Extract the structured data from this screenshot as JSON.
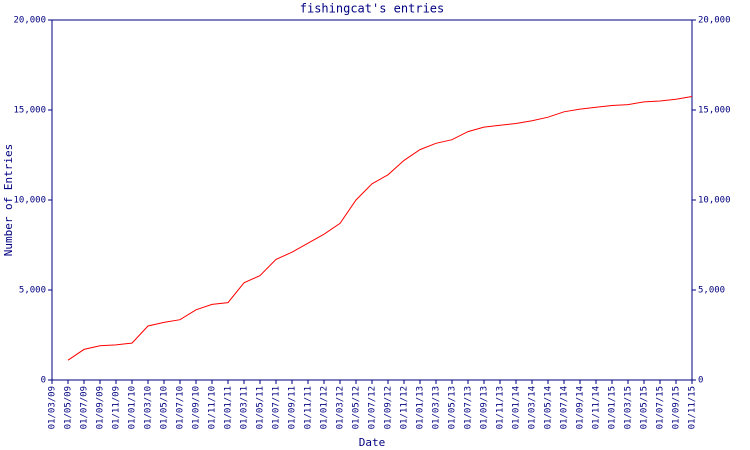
{
  "chart_data": {
    "type": "line",
    "title": "fishingcat's entries",
    "x_label": "Date",
    "y_label": "Number of Entries",
    "categories": [
      "01/03/09",
      "01/05/09",
      "01/07/09",
      "01/09/09",
      "01/11/09",
      "01/01/10",
      "01/03/10",
      "01/05/10",
      "01/07/10",
      "01/09/10",
      "01/11/10",
      "01/01/11",
      "01/03/11",
      "01/05/11",
      "01/07/11",
      "01/09/11",
      "01/11/11",
      "01/01/12",
      "01/03/12",
      "01/05/12",
      "01/07/12",
      "01/09/12",
      "01/11/12",
      "01/01/13",
      "01/03/13",
      "01/05/13",
      "01/07/13",
      "01/09/13",
      "01/11/13",
      "01/01/14",
      "01/03/14",
      "01/05/14",
      "01/07/14",
      "01/09/14",
      "01/11/14",
      "01/01/15",
      "01/03/15",
      "01/05/15",
      "01/07/15",
      "01/09/15",
      "01/11/15"
    ],
    "series": [
      {
        "name": "entries",
        "color": "#ff0000",
        "values": [
          null,
          1100,
          1700,
          1900,
          1950,
          2050,
          3000,
          3200,
          3350,
          3900,
          4200,
          4300,
          5400,
          5800,
          6700,
          7100,
          7600,
          8100,
          8700,
          10000,
          10900,
          11400,
          12200,
          12800,
          13150,
          13350,
          13800,
          14050,
          14150,
          14250,
          14400,
          14600,
          14900,
          15050,
          15150,
          15250,
          15300,
          15450,
          15500,
          15600,
          15750
        ]
      }
    ],
    "ylim": [
      0,
      20000
    ],
    "yticks": [
      0,
      {
        "value": 5000,
        "label": "5,000"
      },
      {
        "value": 10000,
        "label": "10,000"
      },
      {
        "value": 15000,
        "label": "15,000"
      },
      {
        "value": 20000,
        "label": "20,000"
      }
    ],
    "y2lim": [
      0,
      20000
    ],
    "y2ticks": [
      0,
      {
        "value": 5000,
        "label": "5,000"
      },
      {
        "value": 10000,
        "label": "10,000"
      },
      {
        "value": 15000,
        "label": "15,000"
      },
      {
        "value": 20000,
        "label": "20,000"
      }
    ],
    "axis_color": "#000080"
  }
}
